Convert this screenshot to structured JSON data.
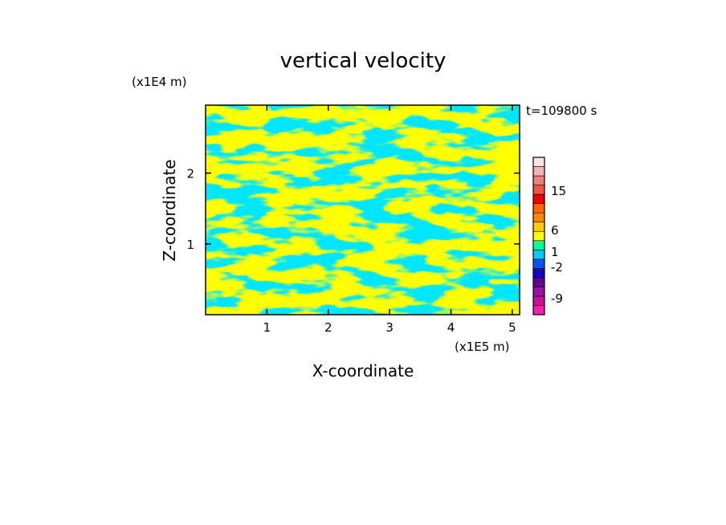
{
  "chart_data": {
    "type": "heatmap",
    "title": "vertical velocity",
    "xlabel": "X-coordinate",
    "ylabel": "Z-coordinate",
    "x_unit": "(x1E5 m)",
    "y_unit": "(x1E4 m)",
    "time_label": "t=109800 s",
    "xlim": [
      0,
      5.12
    ],
    "ylim": [
      0,
      2.96
    ],
    "x_ticks": [
      1,
      2,
      3,
      4,
      5
    ],
    "y_ticks": [
      1,
      2
    ],
    "x_tick_labels": [
      "1",
      "2",
      "3",
      "4",
      "5"
    ],
    "y_tick_labels": [
      "1",
      "2"
    ],
    "field_colors": {
      "positive": "#ffff00",
      "negative": "#00e6ff"
    },
    "colorbar": {
      "levels": [
        {
          "color": "#ee22aa"
        },
        {
          "color": "#cc1199"
        },
        {
          "color": "#9911aa"
        },
        {
          "color": "#660099"
        },
        {
          "color": "#1a00cc"
        },
        {
          "color": "#0055ff"
        },
        {
          "color": "#00ccff"
        },
        {
          "color": "#00ff99"
        },
        {
          "color": "#ffff00"
        },
        {
          "color": "#ffcc00"
        },
        {
          "color": "#ff8800"
        },
        {
          "color": "#ff6600"
        },
        {
          "color": "#ee0000"
        },
        {
          "color": "#ee5544"
        },
        {
          "color": "#f08080"
        },
        {
          "color": "#f4b4b4"
        },
        {
          "color": "#fce2e2"
        }
      ],
      "labels": [
        "15",
        "6",
        "1",
        "-2",
        "-9"
      ]
    }
  }
}
